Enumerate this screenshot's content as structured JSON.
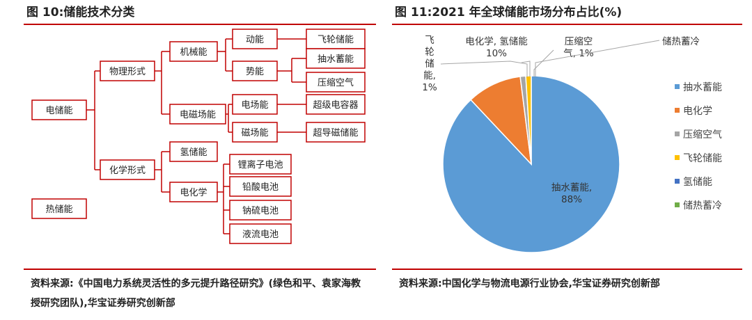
{
  "left": {
    "title": "图 10:储能技术分类",
    "source": "资料来源:《中国电力系统灵活性的多元提升路径研究》(绿色和平、袁家海教授研究团队),华宝证券研究创新部",
    "diagram": {
      "nodes": [
        {
          "id": "elec",
          "label": "电储能"
        },
        {
          "id": "heat",
          "label": "热储能"
        },
        {
          "id": "phys",
          "label": "物理形式"
        },
        {
          "id": "chem",
          "label": "化学形式"
        },
        {
          "id": "mech",
          "label": "机械能"
        },
        {
          "id": "emf",
          "label": "电磁场能"
        },
        {
          "id": "h2",
          "label": "氢储能"
        },
        {
          "id": "echem",
          "label": "电化学"
        },
        {
          "id": "kin",
          "label": "动能"
        },
        {
          "id": "pot",
          "label": "势能"
        },
        {
          "id": "efield",
          "label": "电场能"
        },
        {
          "id": "mfield",
          "label": "磁场能"
        },
        {
          "id": "flywheel",
          "label": "飞轮储能"
        },
        {
          "id": "pumped",
          "label": "抽水蓄能"
        },
        {
          "id": "caes",
          "label": "压缩空气"
        },
        {
          "id": "supercap",
          "label": "超级电容器"
        },
        {
          "id": "smes",
          "label": "超导磁储能"
        },
        {
          "id": "liion",
          "label": "锂离子电池"
        },
        {
          "id": "pbacid",
          "label": "铅酸电池"
        },
        {
          "id": "nas",
          "label": "钠硫电池"
        },
        {
          "id": "flow",
          "label": "液流电池"
        }
      ]
    }
  },
  "right": {
    "title": "图 11:2021 年全球储能市场分布占比(%)",
    "source": "资料来源:中国化学与物流电源行业协会,华宝证券研究创新部"
  },
  "chart_data": {
    "type": "pie",
    "title": "2021 年全球储能市场分布占比(%)",
    "slices": [
      {
        "name": "抽水蓄能",
        "value": 88,
        "color": "#5b9bd5",
        "label": "抽水蓄能,",
        "pct": "88%"
      },
      {
        "name": "电化学",
        "value": 10,
        "color": "#ed7d31",
        "label": "电化学,",
        "pct": "10%"
      },
      {
        "name": "压缩空气",
        "value": 1,
        "color": "#a5a5a5",
        "label": "压缩空气,",
        "pct": "1%"
      },
      {
        "name": "飞轮储能",
        "value": 1,
        "color": "#ffc000",
        "label": "飞轮储能,",
        "pct": "1%"
      },
      {
        "name": "氢储能",
        "value": 0,
        "color": "#4472c4",
        "label": "氢储能",
        "pct": ""
      },
      {
        "name": "储热蓄冷",
        "value": 0,
        "color": "#70ad47",
        "label": "储热蓄冷",
        "pct": ""
      }
    ],
    "legend_position": "right"
  }
}
